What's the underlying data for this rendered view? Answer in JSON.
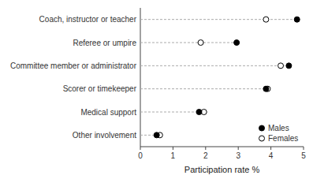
{
  "chart_data": {
    "type": "dot",
    "orientation": "horizontal",
    "categories": [
      "Other involvement",
      "Medical support",
      "Scorer or timekeeper",
      "Committee member or administrator",
      "Referee or umpire",
      "Coach, instructor or teacher"
    ],
    "series": [
      {
        "name": "Males",
        "color": "#000000",
        "marker": "circle",
        "values": [
          0.5,
          1.8,
          3.85,
          4.55,
          2.95,
          4.8
        ]
      },
      {
        "name": "Females",
        "color": "#ffffff",
        "marker": "circle",
        "values": [
          0.6,
          1.95,
          3.9,
          4.3,
          1.85,
          3.85
        ]
      }
    ],
    "color": "#aaaaaa",
    "line_style": "dashed",
    "xlabel": "Participation rate %",
    "xlim": [
      0,
      5
    ],
    "xticks": [
      0,
      1,
      2,
      3,
      4,
      5
    ],
    "legend": "lower right"
  }
}
